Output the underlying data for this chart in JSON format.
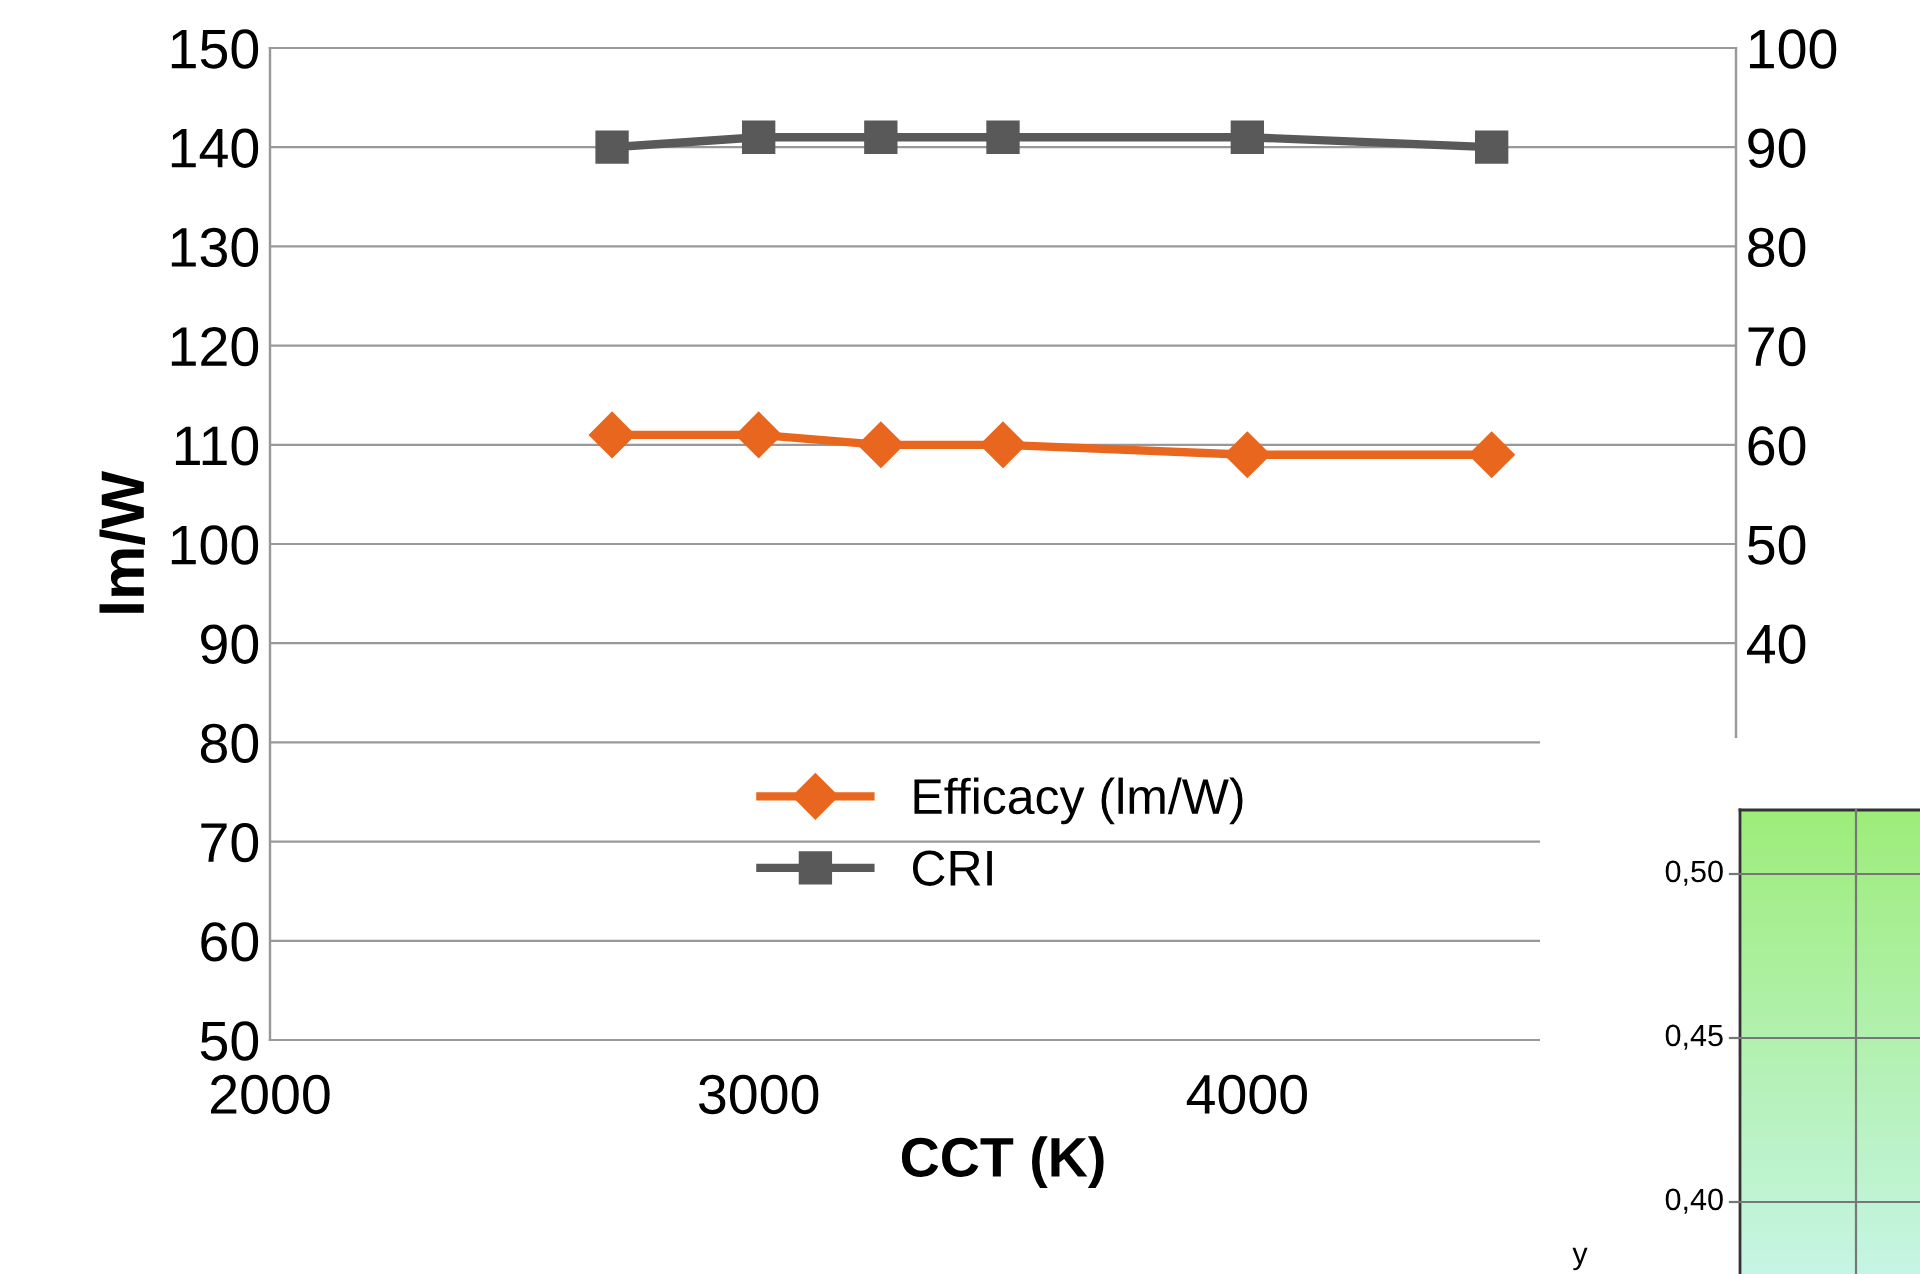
{
  "chart_data": [
    {
      "type": "line",
      "xlabel": "CCT (K)",
      "ylabel": "lm/W",
      "x": [
        2700,
        3000,
        3250,
        3500,
        4000,
        4500
      ],
      "series": [
        {
          "name": "Efficacy (lm/W)",
          "color": "#e8661e",
          "values": [
            111,
            111,
            110,
            110,
            109,
            109
          ],
          "marker": "diamond"
        },
        {
          "name": "CRI",
          "color": "#595959",
          "values": [
            90,
            91,
            91,
            91,
            91,
            90
          ],
          "marker": "square",
          "axis": "y2"
        }
      ],
      "xlim": [
        2000,
        5000
      ],
      "xticks": [
        2000,
        3000,
        4000
      ],
      "ylim": [
        50,
        150
      ],
      "yticks": [
        50,
        60,
        70,
        80,
        90,
        100,
        110,
        120,
        130,
        140,
        150
      ],
      "y2lim": [
        0,
        100
      ],
      "y2ticks": [
        40,
        50,
        60,
        70,
        80,
        90,
        100
      ],
      "grid": "y",
      "legend": "bottom"
    },
    {
      "type": "other",
      "annotations": [
        "0,50",
        "0,45",
        "0,40",
        "y"
      ]
    }
  ]
}
